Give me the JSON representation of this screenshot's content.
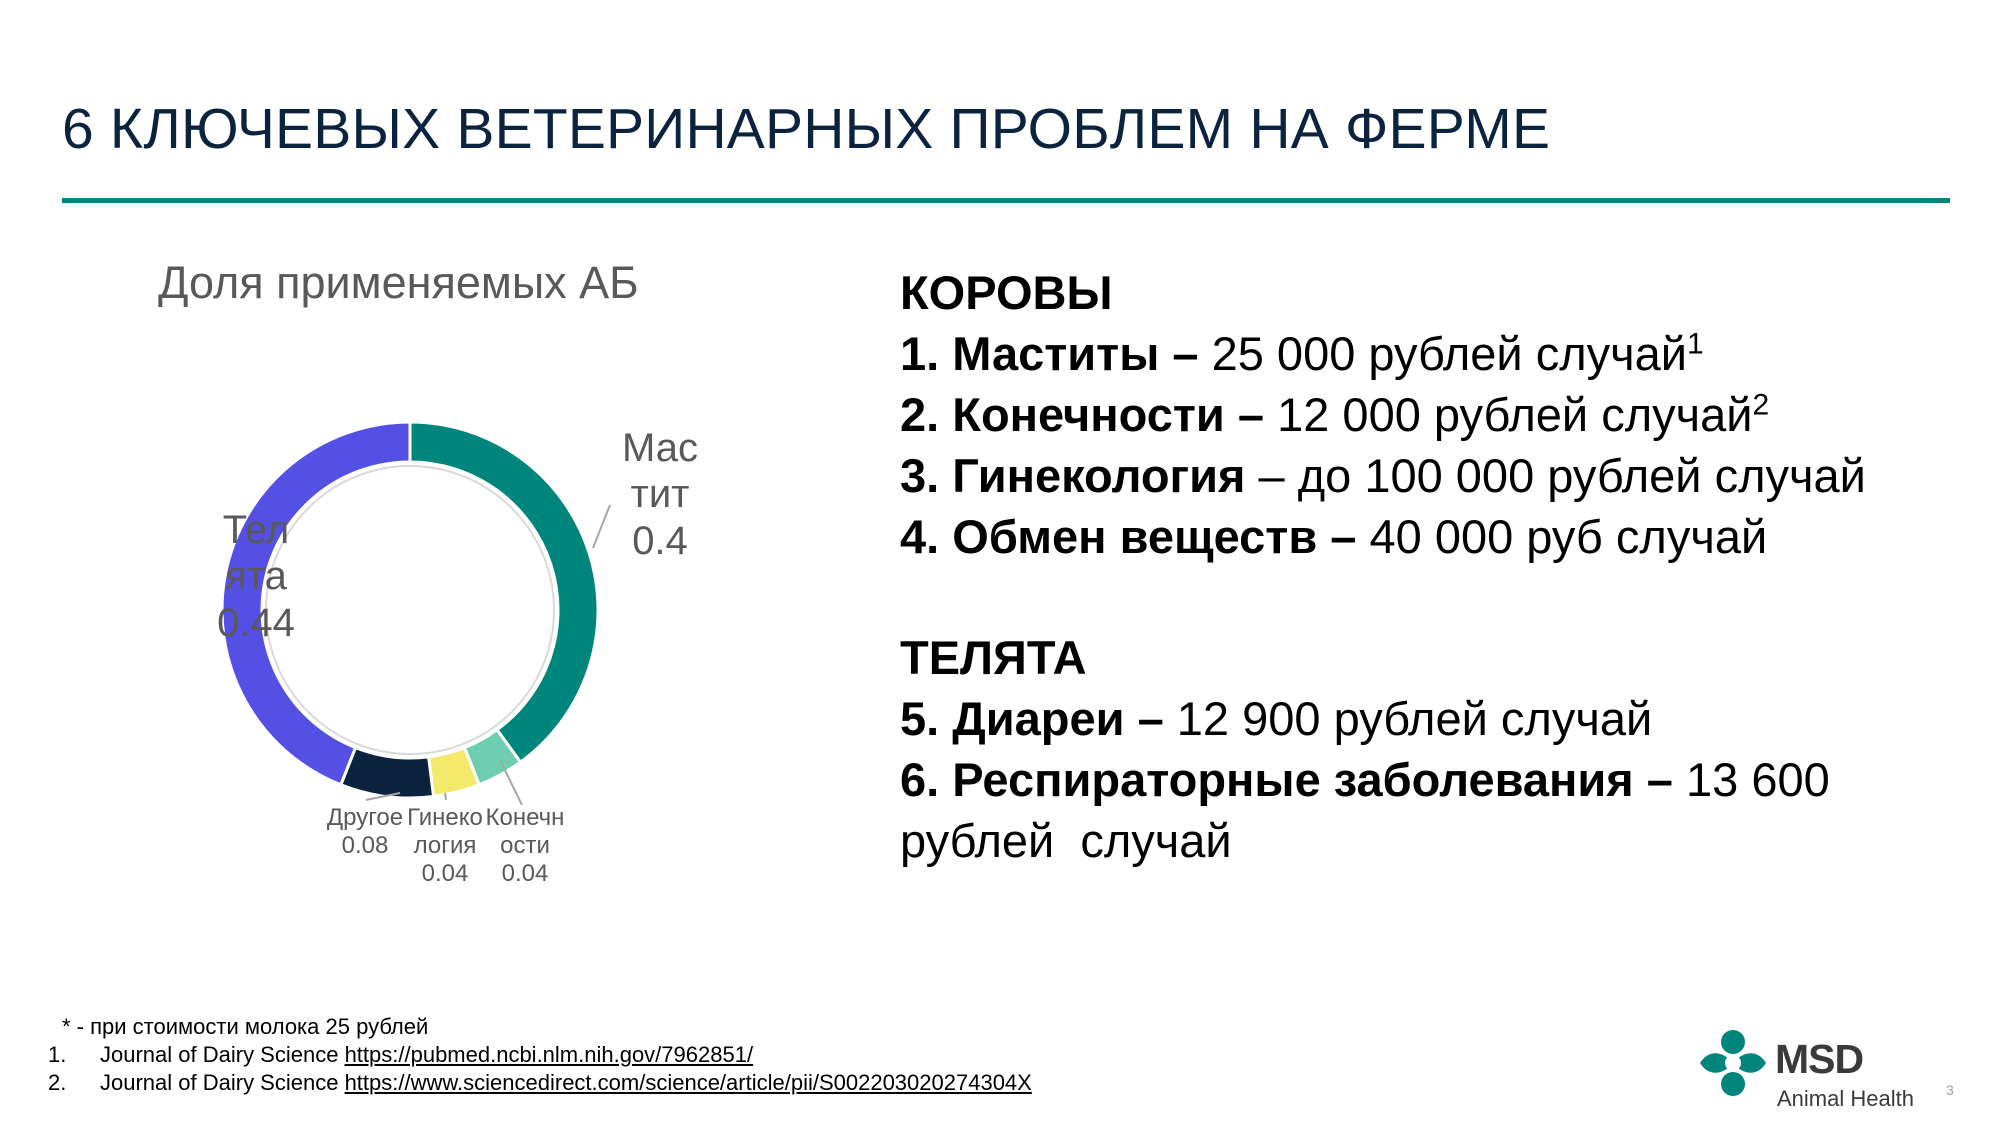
{
  "slide": {
    "title": "6 КЛЮЧЕВЫХ ВЕТЕРИНАРНЫХ ПРОБЛЕМ НА ФЕРМЕ",
    "page_number": "3"
  },
  "colors": {
    "accent": "#00857c",
    "title": "#0c2340",
    "text_gray": "#595959"
  },
  "chart_data": {
    "type": "pie",
    "title": "Доля применяемых АБ",
    "donut": true,
    "categories": [
      "Маститы",
      "Конечности",
      "Гинекология",
      "Другое",
      "Телята"
    ],
    "values": [
      0.4,
      0.04,
      0.04,
      0.08,
      0.44
    ],
    "colors": [
      "#00857c",
      "#6ecfb0",
      "#f3ea6c",
      "#0c2340",
      "#5450e4"
    ],
    "labels": {
      "mastit": {
        "l1": "Мас",
        "l2": "тит",
        "v": "0.4"
      },
      "telyata": {
        "l1": "Тел",
        "l2": "ята",
        "v": "0.44"
      },
      "drugoe": {
        "l1": "Другое",
        "v": "0.08"
      },
      "gineko": {
        "l1": "Гинеко",
        "l2": "логия",
        "v": "0.04"
      },
      "konech": {
        "l1": "Конечн",
        "l2": "ости",
        "v": "0.04"
      }
    }
  },
  "cows": {
    "heading": "КОРОВЫ",
    "items": [
      {
        "bold": "1. Маститы –",
        "text": " 25 000 рублей случай",
        "sup": "1"
      },
      {
        "bold": "2. Конечности –",
        "text": " 12 000 рублей случай",
        "sup": "2"
      },
      {
        "bold": "3. Гинекология",
        "text": " – до 100 000 рублей случай",
        "sup": ""
      },
      {
        "bold": "4. Обмен веществ –",
        "text": " 40 000 руб случай",
        "sup": ""
      }
    ]
  },
  "calves": {
    "heading": "ТЕЛЯТА",
    "items": [
      {
        "bold": "5. Диареи –",
        "text": " 12 900 рублей случай"
      },
      {
        "bold": "6. Респираторные заболевания –",
        "text": " 13 600",
        "cont": "рублей  случай"
      }
    ]
  },
  "footnotes": {
    "star_note": "* - при стоимости молока 25 рублей",
    "refs": [
      {
        "num": "1.",
        "source": "Journal of Dairy Science ",
        "link": "https://pubmed.ncbi.nlm.nih.gov/7962851/"
      },
      {
        "num": "2.",
        "source": "Journal of Dairy Science ",
        "link": "https://www.sciencedirect.com/science/article/pii/S002203020274304X"
      }
    ]
  },
  "logo": {
    "brand": "MSD",
    "subtitle": "Animal Health"
  }
}
